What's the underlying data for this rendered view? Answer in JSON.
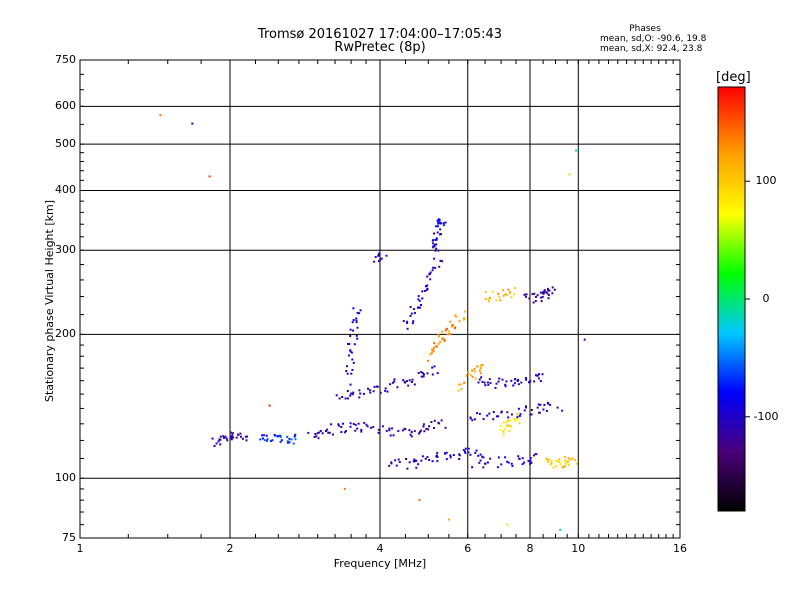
{
  "chart_data": {
    "type": "scatter",
    "title": "Tromsø 20161027 17:04:00–17:05:43",
    "subtitle": "RwPretec (8p)",
    "xlabel": "Frequency [MHz]",
    "ylabel": "Stationary phase Virtual Height [km]",
    "xscale": "log2",
    "yscale": "log",
    "xlim": [
      1,
      16
    ],
    "ylim": [
      75,
      750
    ],
    "xticks": [
      "1",
      "2",
      "4",
      "6",
      "8",
      "10",
      "16"
    ],
    "xtick_values": [
      1,
      2,
      4,
      6,
      8,
      10,
      16
    ],
    "yticks": [
      "75",
      "100",
      "200",
      "300",
      "400",
      "500",
      "600",
      "750"
    ],
    "ytick_values": [
      75,
      100,
      200,
      300,
      400,
      500,
      600,
      750
    ],
    "grid": true,
    "stats": {
      "heading": "Phases",
      "line_o": "mean, sd,O: -90.6, 19.8",
      "line_x": "mean, sd,X:  92.4, 23.8"
    },
    "colorbar": {
      "label": "[deg]",
      "range": [
        -180,
        180
      ],
      "ticks": [
        "100",
        "0",
        "-100"
      ],
      "tick_values": [
        100,
        0,
        -100
      ],
      "colors": [
        "#000000",
        "#4b007a",
        "#0000ff",
        "#00c8ff",
        "#00ff00",
        "#ffff00",
        "#ff9900",
        "#ff0000"
      ]
    },
    "traces": [
      {
        "name": "",
        "phase": -110,
        "x": [
          1.85,
          1.95,
          2.05,
          2.15
        ],
        "y": [
          118,
          122,
          124,
          121
        ]
      },
      {
        "name": "",
        "phase": -70,
        "x": [
          2.3,
          2.45,
          2.6,
          2.75
        ],
        "y": [
          120,
          121,
          122,
          120
        ]
      },
      {
        "name": "",
        "phase": -110,
        "x": [
          2.9,
          3.1,
          3.4,
          3.7,
          4.1,
          4.6,
          5.0,
          5.4
        ],
        "y": [
          123,
          126,
          128,
          128,
          126,
          125,
          128,
          131
        ]
      },
      {
        "name": "",
        "phase": -105,
        "x": [
          3.3,
          3.6,
          4.0,
          4.4,
          4.8,
          5.2
        ],
        "y": [
          150,
          150,
          153,
          158,
          163,
          170
        ]
      },
      {
        "name": "",
        "phase": -100,
        "x": [
          3.45,
          3.5,
          3.55,
          3.6
        ],
        "y": [
          160,
          185,
          205,
          230
        ]
      },
      {
        "name": "",
        "phase": -105,
        "x": [
          4.5,
          4.7,
          4.9,
          5.1,
          5.3
        ],
        "y": [
          210,
          225,
          245,
          270,
          300
        ]
      },
      {
        "name": "",
        "phase": -90,
        "x": [
          5.1,
          5.2,
          5.3,
          5.35
        ],
        "y": [
          300,
          320,
          340,
          350
        ]
      },
      {
        "name": "",
        "phase": -110,
        "x": [
          3.9,
          4.1
        ],
        "y": [
          288,
          290
        ]
      },
      {
        "name": "",
        "phase": -100,
        "x": [
          4.2,
          4.6,
          5.0,
          5.5,
          6.0,
          6.5
        ],
        "y": [
          108,
          107,
          110,
          112,
          113,
          112
        ]
      },
      {
        "name": "",
        "phase": -100,
        "x": [
          6.2,
          6.8,
          7.4,
          8.0,
          8.6
        ],
        "y": [
          160,
          158,
          158,
          160,
          162
        ]
      },
      {
        "name": "",
        "phase": -105,
        "x": [
          6.0,
          6.8,
          7.6,
          8.4,
          9.2
        ],
        "y": [
          135,
          136,
          138,
          140,
          142
        ]
      },
      {
        "name": "",
        "phase": -100,
        "x": [
          6.2,
          7.0,
          7.8,
          8.4
        ],
        "y": [
          108,
          108,
          109,
          110
        ]
      },
      {
        "name": "",
        "phase": -120,
        "x": [
          7.9,
          8.3,
          8.7,
          8.9
        ],
        "y": [
          238,
          240,
          243,
          245
        ]
      },
      {
        "name": "",
        "phase": 130,
        "x": [
          5.0,
          5.2,
          5.4,
          5.6,
          5.9
        ],
        "y": [
          180,
          190,
          200,
          210,
          220
        ]
      },
      {
        "name": "",
        "phase": 110,
        "x": [
          6.5,
          7.0,
          7.5
        ],
        "y": [
          240,
          242,
          245
        ]
      },
      {
        "name": "",
        "phase": 90,
        "x": [
          7.0,
          7.3,
          7.6
        ],
        "y": [
          125,
          130,
          135
        ]
      },
      {
        "name": "",
        "phase": 100,
        "x": [
          8.6,
          9.0,
          9.5,
          9.9
        ],
        "y": [
          107,
          108,
          108,
          109
        ]
      },
      {
        "name": "",
        "phase": 120,
        "x": [
          5.8,
          6.1,
          6.5
        ],
        "y": [
          155,
          165,
          172
        ]
      }
    ],
    "points": [
      {
        "x": 1.45,
        "y": 575,
        "phase": 140
      },
      {
        "x": 1.68,
        "y": 552,
        "phase": -110
      },
      {
        "x": 1.82,
        "y": 428,
        "phase": 160
      },
      {
        "x": 9.9,
        "y": 485,
        "phase": -10
      },
      {
        "x": 9.6,
        "y": 432,
        "phase": 100
      },
      {
        "x": 10.3,
        "y": 195,
        "phase": -110
      },
      {
        "x": 4.8,
        "y": 90,
        "phase": 140
      },
      {
        "x": 5.5,
        "y": 82,
        "phase": 120
      },
      {
        "x": 7.2,
        "y": 80,
        "phase": 90
      },
      {
        "x": 9.2,
        "y": 78,
        "phase": -10
      },
      {
        "x": 3.4,
        "y": 95,
        "phase": 140
      },
      {
        "x": 2.4,
        "y": 142,
        "phase": 170
      }
    ]
  }
}
